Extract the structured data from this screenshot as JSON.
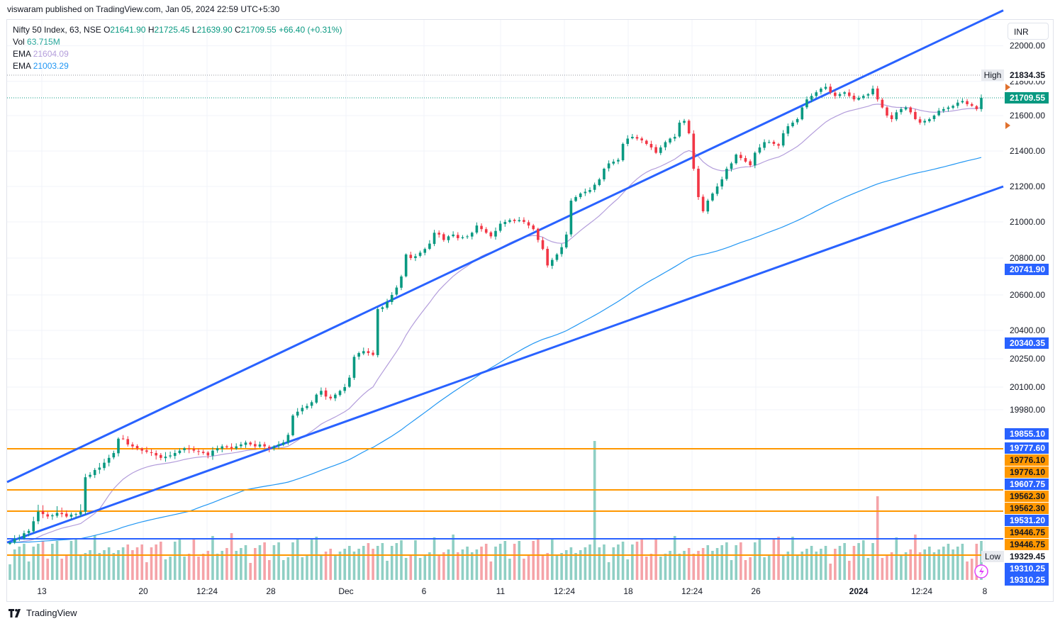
{
  "header": {
    "published_text": "viswaram published on TradingView.com, Jan 05, 2024 22:59 UTC+5:30"
  },
  "legend": {
    "symbol": "Nifty 50 Index, 63, NSE",
    "open_label": "O",
    "open": "21641.90",
    "high_label": "H",
    "high": "21725.45",
    "low_label": "L",
    "low": "21639.90",
    "close_label": "C",
    "close": "21709.55",
    "change": "+66.40 (+0.31%)",
    "vol_label": "Vol",
    "vol": "63.715M",
    "ema1_label": "EMA",
    "ema1": "21604.09",
    "ema2_label": "EMA",
    "ema2": "21003.29"
  },
  "currency_button": "INR",
  "brand": "TradingView",
  "colors": {
    "up": "#089981",
    "down": "#f23645",
    "vol_up": "#8fcfc4",
    "vol_down": "#f5a3a8",
    "trendline": "#2962ff",
    "hline_orange": "#ff9800",
    "hline_blue": "#2962ff",
    "ema_fast": "#b39ddb",
    "ema_slow": "#2196f3"
  },
  "chart_data": {
    "type": "candlestick",
    "symbol": "Nifty 50 Index",
    "interval": "63",
    "x_tick_labels": [
      "13",
      "20",
      "12:24",
      "28",
      "Dec",
      "6",
      "11",
      "12:24",
      "18",
      "12:24",
      "26",
      "2024",
      "12:24",
      "8"
    ],
    "y_tick_labels": [
      "22000.00",
      "21800.00",
      "21600.00",
      "21400.00",
      "21200.00",
      "21000.00",
      "20800.00",
      "20600.00",
      "20400.00",
      "20250.00",
      "20100.00",
      "19980.00"
    ],
    "ylim": [
      19300,
      22130
    ],
    "axis_scale": "nonlinear-price",
    "price_markers": [
      {
        "label": "High",
        "value": "21834.35",
        "style": "high"
      },
      {
        "value": "21709.55",
        "style": "last"
      },
      {
        "value": "20741.90",
        "style": "blue"
      },
      {
        "value": "20340.35",
        "style": "blue"
      },
      {
        "value": "19855.10",
        "style": "blue"
      },
      {
        "value": "19777.60",
        "style": "blue"
      },
      {
        "value": "19776.10",
        "style": "orange"
      },
      {
        "value": "19776.10",
        "style": "orange"
      },
      {
        "value": "19607.75",
        "style": "blue"
      },
      {
        "value": "19562.30",
        "style": "orange"
      },
      {
        "value": "19562.30",
        "style": "orange"
      },
      {
        "value": "19531.20",
        "style": "blue"
      },
      {
        "value": "19446.75",
        "style": "orange"
      },
      {
        "value": "19446.75",
        "style": "orange"
      },
      {
        "label": "Low",
        "value": "19329.45",
        "style": "low"
      },
      {
        "value": "19310.25",
        "style": "blue"
      },
      {
        "value": "19310.25",
        "style": "blue"
      }
    ],
    "horizontal_levels": [
      {
        "price": 19777.6,
        "color": "orange"
      },
      {
        "price": 19607.75,
        "color": "orange"
      },
      {
        "price": 19562.3,
        "color": "orange"
      },
      {
        "price": 19446.75,
        "color": "blue"
      },
      {
        "price": 19329.45,
        "color": "orange"
      }
    ],
    "trendlines": [
      {
        "from": [
          0,
          19640
        ],
        "to": [
          1,
          22200
        ]
      },
      {
        "from": [
          0,
          19420
        ],
        "to": [
          1,
          21200
        ]
      }
    ],
    "ema_fast_last": 21604.09,
    "ema_slow_last": 21003.29,
    "candles_close": [
      19420,
      19445,
      19450,
      19470,
      19480,
      19520,
      19560,
      19550,
      19540,
      19545,
      19555,
      19550,
      19540,
      19548,
      19550,
      19560,
      19660,
      19670,
      19690,
      19700,
      19720,
      19740,
      19760,
      19830,
      19830,
      19800,
      19790,
      19780,
      19770,
      19765,
      19760,
      19750,
      19740,
      19745,
      19750,
      19760,
      19770,
      19780,
      19775,
      19770,
      19765,
      19760,
      19750,
      19770,
      19780,
      19790,
      19785,
      19780,
      19790,
      19800,
      19810,
      19800,
      19790,
      19800,
      19790,
      19780,
      19790,
      19800,
      19810,
      19850,
      19950,
      19970,
      19990,
      20000,
      20020,
      20060,
      20080,
      20050,
      20040,
      20060,
      20080,
      20100,
      20150,
      20260,
      20280,
      20290,
      20280,
      20270,
      20520,
      20530,
      20560,
      20600,
      20640,
      20700,
      20820,
      20800,
      20810,
      20830,
      20850,
      20880,
      20940,
      20930,
      20900,
      20920,
      20930,
      20910,
      20915,
      20920,
      20940,
      20980,
      20960,
      20940,
      20920,
      20950,
      20990,
      21000,
      21010,
      21005,
      21010,
      21000,
      20980,
      20960,
      20900,
      20850,
      20760,
      20790,
      20820,
      20860,
      20930,
      21120,
      21140,
      21160,
      21170,
      21180,
      21210,
      21240,
      21300,
      21330,
      21340,
      21350,
      21440,
      21470,
      21480,
      21470,
      21460,
      21440,
      21420,
      21390,
      21420,
      21450,
      21470,
      21480,
      21560,
      21570,
      21500,
      21300,
      21140,
      21060,
      21120,
      21160,
      21200,
      21240,
      21300,
      21330,
      21380,
      21360,
      21340,
      21320,
      21390,
      21420,
      21450,
      21450,
      21440,
      21430,
      21500,
      21540,
      21560,
      21580,
      21650,
      21700,
      21720,
      21740,
      21760,
      21770,
      21740,
      21720,
      21730,
      21740,
      21720,
      21700,
      21710,
      21720,
      21730,
      21760,
      21700,
      21650,
      21600,
      21580,
      21620,
      21640,
      21650,
      21620,
      21580,
      21560,
      21570,
      21580,
      21600,
      21630,
      21640,
      21650,
      21660,
      21680,
      21690,
      21670,
      21660,
      21640,
      21710
    ]
  }
}
